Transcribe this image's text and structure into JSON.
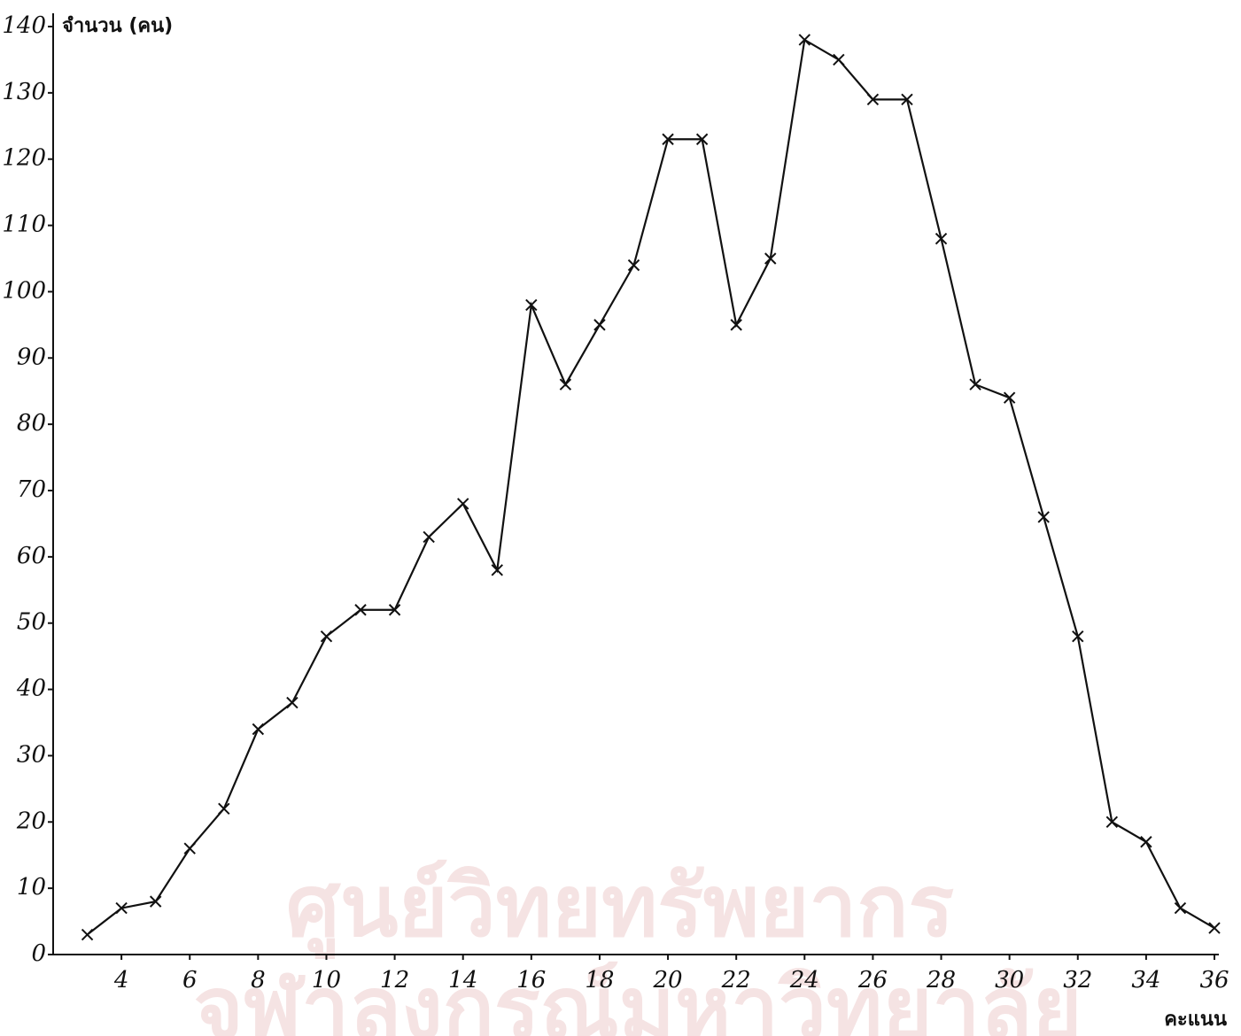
{
  "chart_data": {
    "type": "line",
    "y_label": "จำนวน (คน)",
    "x_label": "คะแนน",
    "watermark": [
      "ศูนย์วิทยทรัพยากร",
      "จุฬาลงกรณ์มหาวิทยาลัย"
    ],
    "x": [
      3,
      4,
      5,
      6,
      7,
      8,
      9,
      10,
      11,
      12,
      13,
      14,
      15,
      16,
      17,
      18,
      19,
      20,
      21,
      22,
      23,
      24,
      25,
      26,
      27,
      28,
      29,
      30,
      31,
      32,
      33,
      34,
      35,
      36
    ],
    "series": [
      {
        "color": "#111111",
        "values": [
          3,
          7,
          8,
          16,
          22,
          34,
          38,
          48,
          52,
          52,
          63,
          68,
          58,
          98,
          86,
          95,
          104,
          123,
          123,
          95,
          105,
          138,
          135,
          129,
          129,
          108,
          86,
          84,
          66,
          48,
          20,
          17,
          7,
          4
        ]
      }
    ],
    "xlim": [
      2,
      36
    ],
    "xticks": [
      4,
      6,
      8,
      10,
      12,
      14,
      16,
      18,
      20,
      22,
      24,
      26,
      28,
      30,
      32,
      34,
      36
    ],
    "ylim": [
      0,
      140
    ],
    "yticks": [
      0,
      10,
      20,
      30,
      40,
      50,
      60,
      70,
      80,
      90,
      100,
      110,
      120,
      130,
      140
    ],
    "grid": false
  }
}
